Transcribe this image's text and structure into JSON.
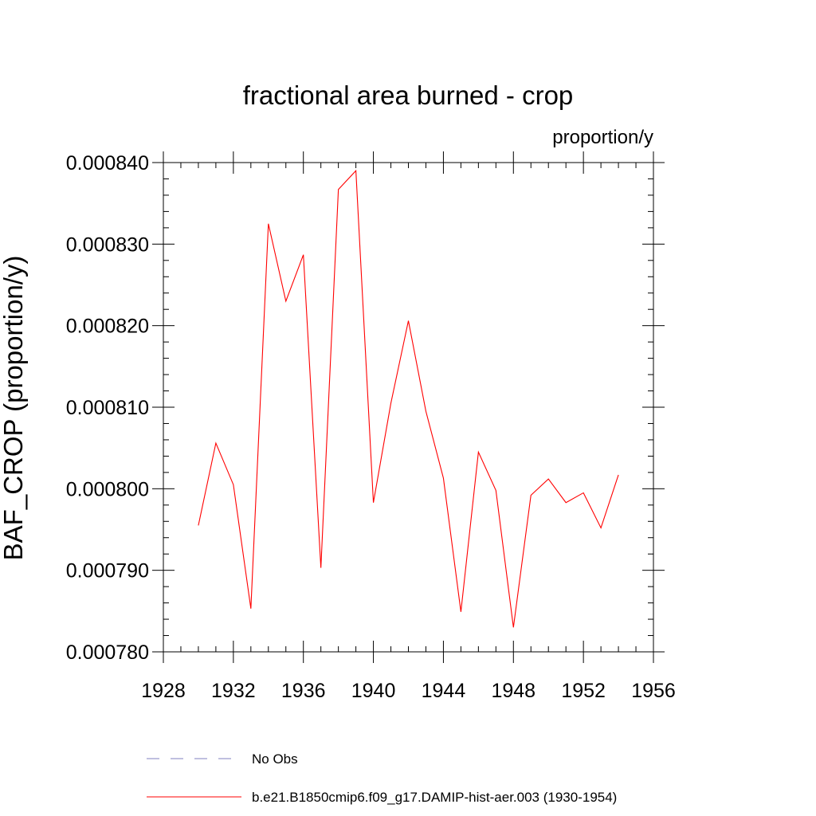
{
  "chart_data": {
    "type": "line",
    "title": "fractional area burned - crop",
    "units_label": "proportion/y",
    "ylabel": "BAF_CROP  (proportion/y)",
    "xlabel": "",
    "xlim": [
      1928,
      1956
    ],
    "ylim": [
      0.00078,
      0.00084
    ],
    "x_ticks": [
      "1928",
      "1932",
      "1936",
      "1940",
      "1944",
      "1948",
      "1952",
      "1956"
    ],
    "y_ticks": [
      "0.000780",
      "0.000790",
      "0.000800",
      "0.000810",
      "0.000820",
      "0.000830",
      "0.000840"
    ],
    "grid": false,
    "legend_position": "bottom",
    "series": [
      {
        "name": "b.e21.B1850cmip6.f09_g17.DAMIP-hist-aer.003 (1930-1954)",
        "color": "#ff0000",
        "style": "solid",
        "x": [
          1930,
          1931,
          1932,
          1933,
          1934,
          1935,
          1936,
          1937,
          1938,
          1939,
          1940,
          1941,
          1942,
          1943,
          1944,
          1945,
          1946,
          1947,
          1948,
          1949,
          1950,
          1951,
          1952,
          1953,
          1954
        ],
        "y": [
          0.0007955,
          0.0008056,
          0.0008005,
          0.0007853,
          0.0008325,
          0.000823,
          0.0008287,
          0.0007903,
          0.0008367,
          0.000839,
          0.0007983,
          0.0008105,
          0.0008206,
          0.0008095,
          0.0008013,
          0.0007849,
          0.0008045,
          0.0007998,
          0.000783,
          0.0007992,
          0.0008012,
          0.0007983,
          0.0007995,
          0.0007952,
          0.0008017
        ]
      }
    ],
    "legend": [
      {
        "label": "No Obs",
        "color": "#8080c0",
        "style": "dashed"
      },
      {
        "label": "b.e21.B1850cmip6.f09_g17.DAMIP-hist-aer.003 (1930-1954)",
        "color": "#ff0000",
        "style": "solid"
      }
    ]
  }
}
